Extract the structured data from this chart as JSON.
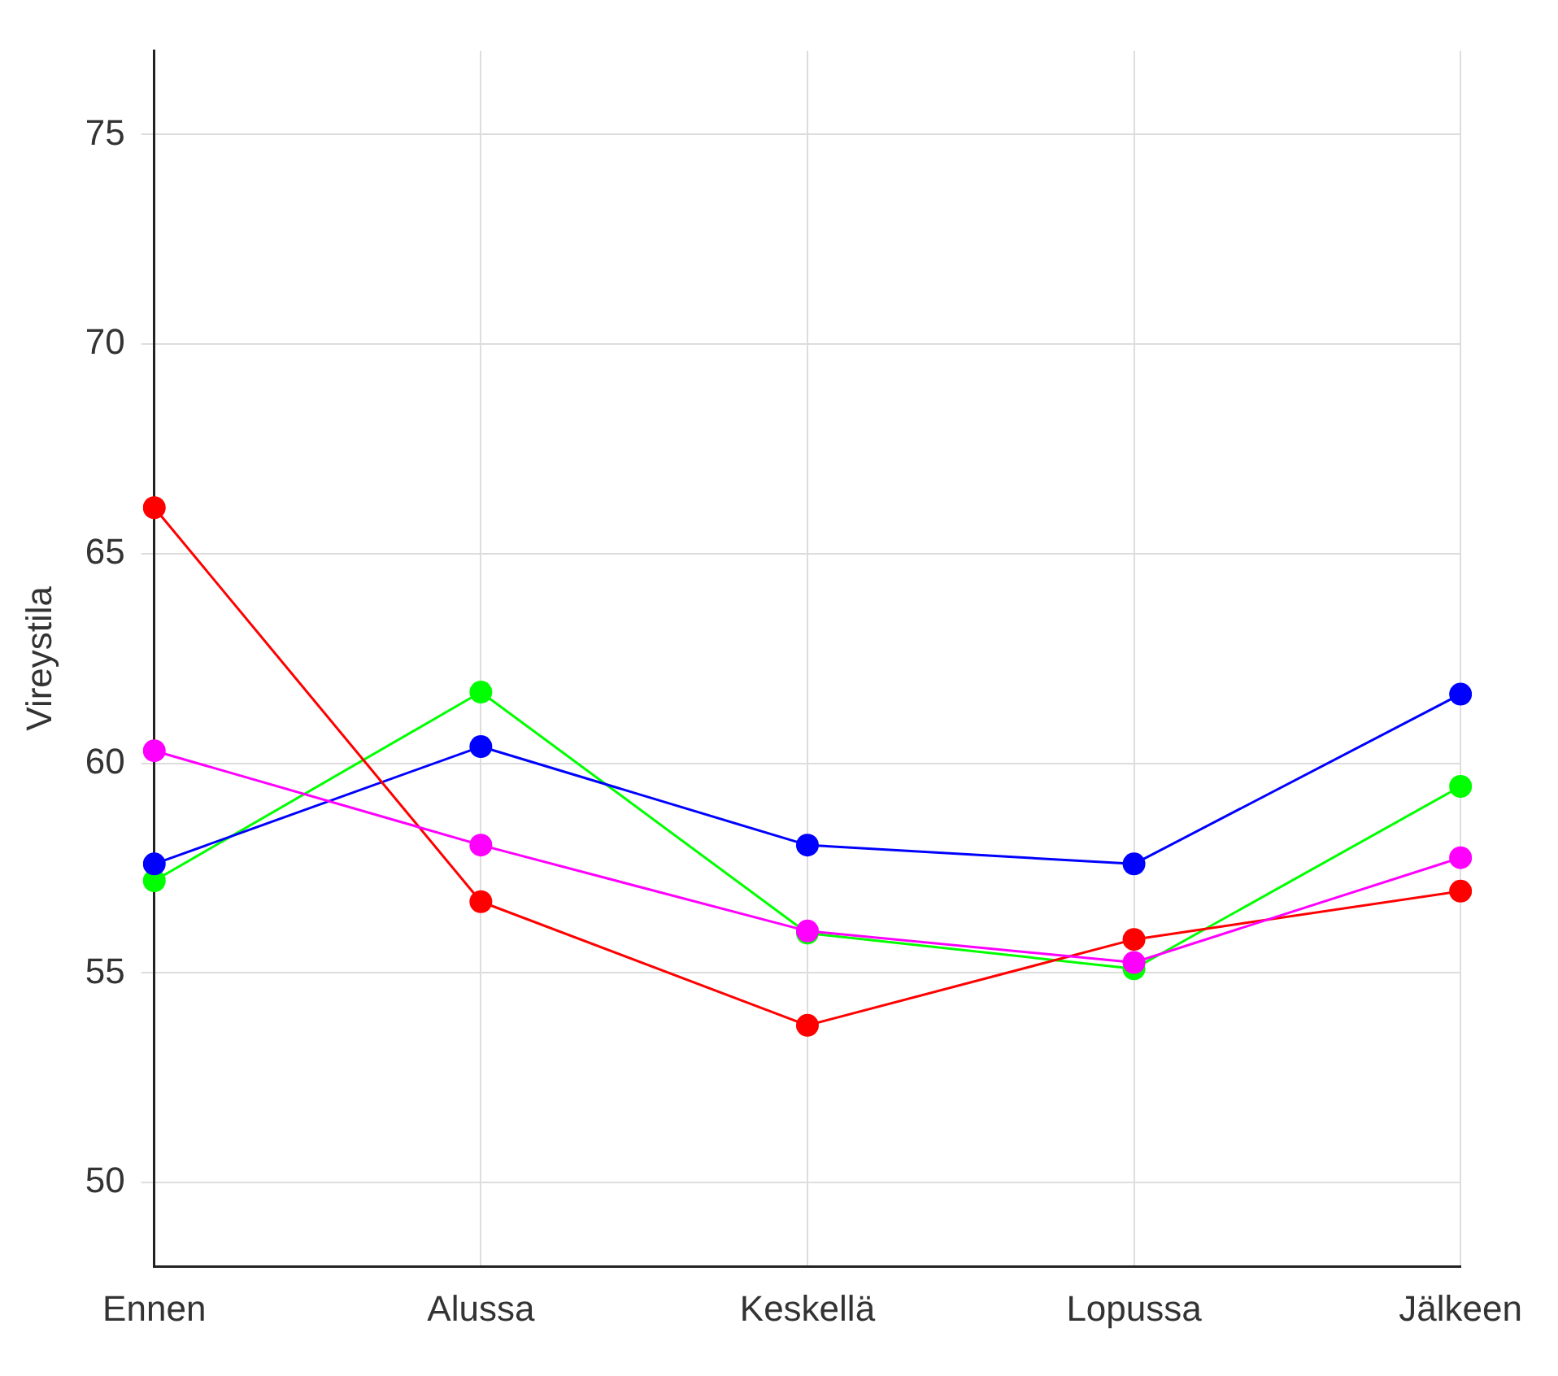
{
  "chart_data": {
    "type": "line",
    "ylabel": "Vireystila",
    "categories": [
      "Ennen",
      "Alussa",
      "Keskellä",
      "Lopussa",
      "Jälkeen"
    ],
    "series": [
      {
        "color": "#ff00ff",
        "values": [
          60.3,
          58.05,
          56.0,
          55.25,
          57.75
        ]
      },
      {
        "color": "#ff0000",
        "values": [
          66.1,
          56.7,
          53.75,
          55.8,
          56.95
        ]
      },
      {
        "color": "#0000ff",
        "values": [
          57.6,
          60.4,
          58.05,
          57.6,
          61.65
        ]
      },
      {
        "color": "#00ff00",
        "values": [
          57.2,
          61.7,
          55.95,
          55.1,
          59.45
        ]
      }
    ],
    "ylim": [
      48,
      77
    ],
    "yticks": [
      50,
      55,
      60,
      65,
      70,
      75
    ],
    "grid": true,
    "legend": false,
    "marker": "circle",
    "line_style": "solid"
  }
}
